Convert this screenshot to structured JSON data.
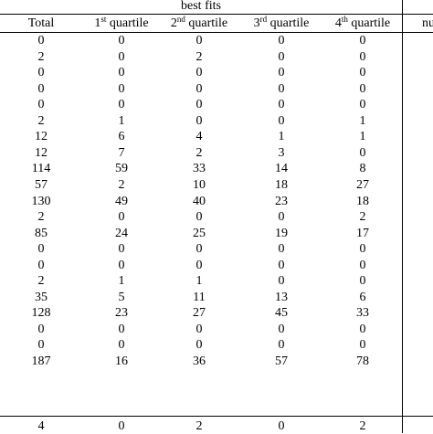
{
  "table": {
    "group_header": "best fits",
    "columns": [
      "Total",
      "1st quartile",
      "2nd quartile",
      "3rd quartile",
      "4th quartile"
    ],
    "column_base": [
      "Total",
      "1",
      "2",
      "3",
      "4"
    ],
    "column_sup": [
      "",
      "st",
      "nd",
      "rd",
      "th"
    ],
    "column_suffix": [
      "",
      " quartile",
      " quartile",
      " quartile",
      " quartile"
    ],
    "right_header_fragment": "nu",
    "rows": [
      [
        "0",
        "0",
        "0",
        "0",
        "0"
      ],
      [
        "2",
        "0",
        "2",
        "0",
        "0"
      ],
      [
        "0",
        "0",
        "0",
        "0",
        "0"
      ],
      [
        "0",
        "0",
        "0",
        "0",
        "0"
      ],
      [
        "0",
        "0",
        "0",
        "0",
        "0"
      ],
      [
        "2",
        "1",
        "0",
        "0",
        "1"
      ],
      [
        "12",
        "6",
        "4",
        "1",
        "1"
      ],
      [
        "12",
        "7",
        "2",
        "3",
        "0"
      ],
      [
        "114",
        "59",
        "33",
        "14",
        "8"
      ],
      [
        "57",
        "2",
        "10",
        "18",
        "27"
      ],
      [
        "130",
        "49",
        "40",
        "23",
        "18"
      ],
      [
        "2",
        "0",
        "0",
        "0",
        "2"
      ],
      [
        "85",
        "24",
        "25",
        "19",
        "17"
      ],
      [
        "0",
        "0",
        "0",
        "0",
        "0"
      ],
      [
        "0",
        "0",
        "0",
        "0",
        "0"
      ],
      [
        "2",
        "1",
        "1",
        "0",
        "0"
      ],
      [
        "35",
        "5",
        "11",
        "13",
        "6"
      ],
      [
        "128",
        "23",
        "27",
        "45",
        "33"
      ],
      [
        "0",
        "0",
        "0",
        "0",
        "0"
      ],
      [
        "0",
        "0",
        "0",
        "0",
        "0"
      ],
      [
        "187",
        "16",
        "36",
        "57",
        "78"
      ]
    ],
    "footer_row": [
      "4",
      "0",
      "2",
      "0",
      "2"
    ]
  }
}
